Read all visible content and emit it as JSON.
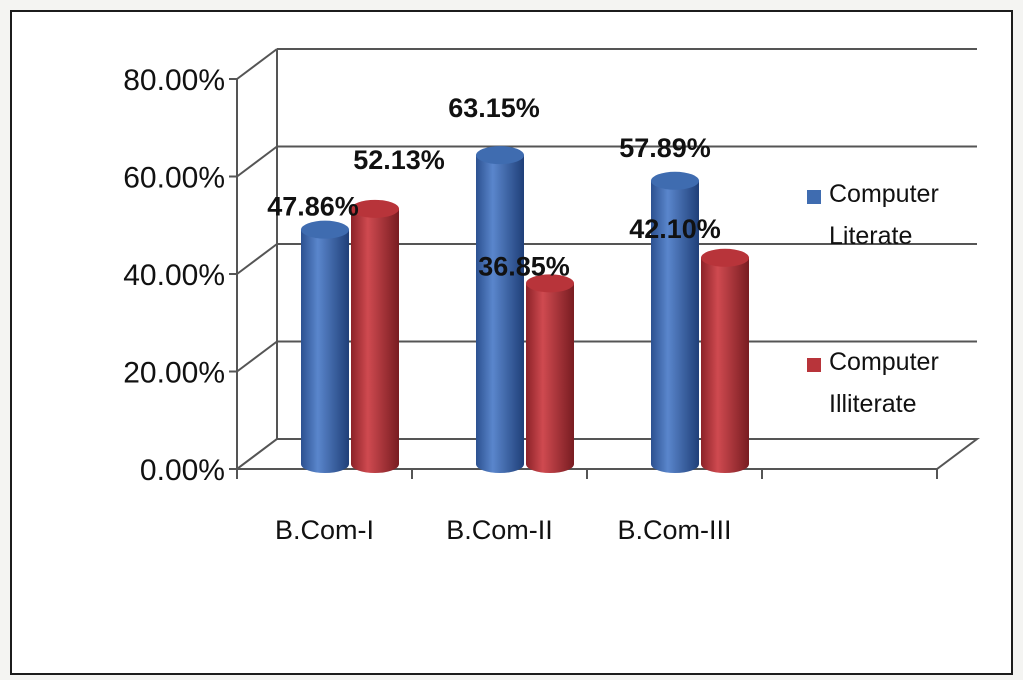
{
  "chart_data": {
    "type": "bar",
    "style": "3d-cylinder",
    "title": "",
    "xlabel": "",
    "ylabel": "",
    "categories": [
      "B.Com-I",
      "B.Com-II",
      "B.Com-III"
    ],
    "ylim": [
      0,
      80
    ],
    "y_ticks": [
      "0.00%",
      "20.00%",
      "40.00%",
      "60.00%",
      "80.00%"
    ],
    "grid": true,
    "legend_position": "right",
    "series": [
      {
        "name": "Computer Literate",
        "legend_lines": [
          "Computer",
          "Literate"
        ],
        "color": "#3f6cb0",
        "values": [
          47.86,
          63.15,
          57.89
        ],
        "labels": [
          "47.86%",
          "63.15%",
          "57.89%"
        ]
      },
      {
        "name": "Computer Illiterate",
        "legend_lines": [
          "Computer",
          "Illiterate"
        ],
        "color": "#b8343a",
        "values": [
          52.13,
          36.85,
          42.1
        ],
        "labels": [
          "52.13%",
          "36.85%",
          "42.10%"
        ]
      }
    ]
  }
}
